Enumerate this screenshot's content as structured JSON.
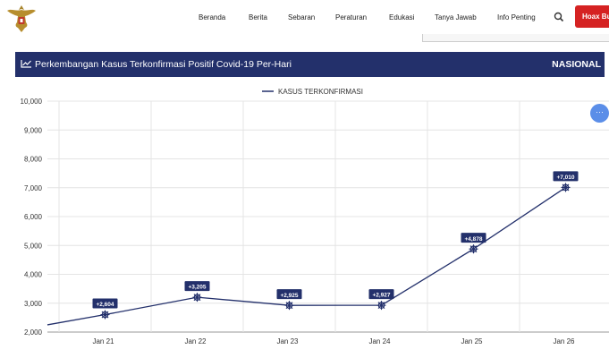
{
  "header": {
    "nav": [
      "Beranda",
      "Berita",
      "Sebaran",
      "Peraturan",
      "Edukasi",
      "Tanya Jawab",
      "Info Penting"
    ],
    "hoax_button": "Hoax Bu"
  },
  "banner": {
    "title": "Perkembangan Kasus Terkonfirmasi Positif Covid-19 Per-Hari",
    "region": "NASIONAL"
  },
  "colors": {
    "primary": "#23306b",
    "hoax": "#d52222",
    "float": "#5b8ee8"
  },
  "chart_data": {
    "type": "line",
    "legend": "KASUS TERKONFIRMASI",
    "legend_position": "top-center",
    "categories": [
      "Jan 21",
      "Jan 22",
      "Jan 23",
      "Jan 24",
      "Jan 25",
      "Jan 26"
    ],
    "values": [
      2604,
      3205,
      2925,
      2927,
      4878,
      7010
    ],
    "data_labels": [
      "+2,604",
      "+3,205",
      "+2,925",
      "+2,927",
      "+4,878",
      "+7,010"
    ],
    "prev_value_offscreen": 2250,
    "ylim": [
      2000,
      10000
    ],
    "y_ticks": [
      "2,000",
      "3,000",
      "4,000",
      "5,000",
      "6,000",
      "7,000",
      "8,000",
      "9,000",
      "10,000"
    ],
    "grid": true
  }
}
